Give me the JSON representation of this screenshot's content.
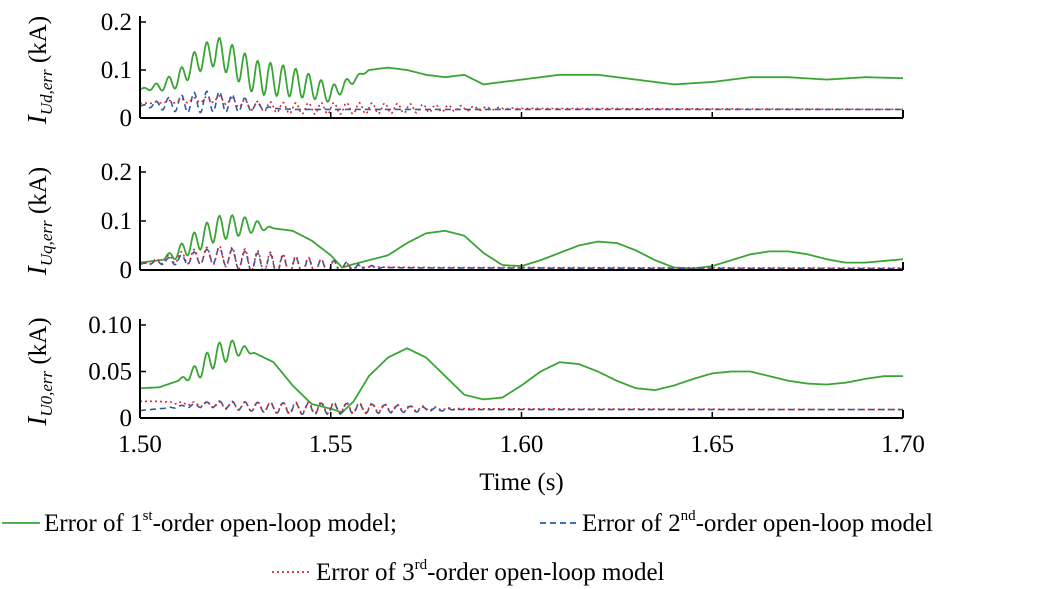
{
  "chart_data": [
    {
      "type": "line",
      "id": "ud",
      "ylabel": {
        "symbol": "I",
        "subscript": "Ud,err",
        "unit": " (kA)"
      },
      "xlim": [
        1.5,
        1.7
      ],
      "ylim": [
        0,
        0.2
      ],
      "yticks": [
        {
          "v": 0,
          "label": "0"
        },
        {
          "v": 0.1,
          "label": "0.1"
        },
        {
          "v": 0.2,
          "label": "0.2"
        }
      ],
      "series": [
        {
          "key": "first",
          "osc": {
            "t0": 1.5,
            "t1": 1.56,
            "amp": 0.035,
            "freq": 300
          },
          "base": [
            [
              1.5,
              0.06
            ],
            [
              1.505,
              0.065
            ],
            [
              1.51,
              0.08
            ],
            [
              1.515,
              0.12
            ],
            [
              1.52,
              0.14
            ],
            [
              1.525,
              0.115
            ],
            [
              1.53,
              0.085
            ],
            [
              1.535,
              0.08
            ],
            [
              1.54,
              0.075
            ],
            [
              1.545,
              0.065
            ],
            [
              1.55,
              0.05
            ],
            [
              1.555,
              0.075
            ],
            [
              1.56,
              0.1
            ],
            [
              1.565,
              0.105
            ],
            [
              1.57,
              0.1
            ],
            [
              1.575,
              0.09
            ],
            [
              1.58,
              0.085
            ],
            [
              1.585,
              0.09
            ],
            [
              1.59,
              0.07
            ],
            [
              1.6,
              0.08
            ],
            [
              1.61,
              0.09
            ],
            [
              1.62,
              0.09
            ],
            [
              1.63,
              0.08
            ],
            [
              1.64,
              0.07
            ],
            [
              1.65,
              0.075
            ],
            [
              1.66,
              0.085
            ],
            [
              1.67,
              0.085
            ],
            [
              1.68,
              0.08
            ],
            [
              1.69,
              0.085
            ],
            [
              1.7,
              0.083
            ]
          ]
        },
        {
          "key": "second",
          "osc": {
            "t0": 1.5,
            "t1": 1.535,
            "amp": 0.022,
            "freq": 300
          },
          "base": [
            [
              1.5,
              0.025
            ],
            [
              1.51,
              0.03
            ],
            [
              1.52,
              0.035
            ],
            [
              1.53,
              0.025
            ],
            [
              1.535,
              0.02
            ],
            [
              1.54,
              0.018
            ],
            [
              1.7,
              0.018
            ]
          ]
        },
        {
          "key": "third",
          "osc": {
            "t0": 1.5,
            "t1": 1.6,
            "amp": 0.012,
            "freq": 300
          },
          "base": [
            [
              1.5,
              0.03
            ],
            [
              1.51,
              0.035
            ],
            [
              1.52,
              0.04
            ],
            [
              1.53,
              0.025
            ],
            [
              1.54,
              0.02
            ],
            [
              1.55,
              0.02
            ],
            [
              1.6,
              0.02
            ],
            [
              1.7,
              0.018
            ]
          ]
        }
      ]
    },
    {
      "type": "line",
      "id": "uq",
      "ylabel": {
        "symbol": "I",
        "subscript": "Uq,err",
        "unit": " (kA)"
      },
      "xlim": [
        1.5,
        1.7
      ],
      "ylim": [
        0,
        0.2
      ],
      "yticks": [
        {
          "v": 0,
          "label": "0"
        },
        {
          "v": 0.1,
          "label": "0.1"
        },
        {
          "v": 0.2,
          "label": "0.2"
        }
      ],
      "series": [
        {
          "key": "first",
          "osc": {
            "t0": 1.505,
            "t1": 1.535,
            "amp": 0.025,
            "freq": 300
          },
          "base": [
            [
              1.5,
              0.015
            ],
            [
              1.505,
              0.02
            ],
            [
              1.51,
              0.035
            ],
            [
              1.515,
              0.06
            ],
            [
              1.52,
              0.085
            ],
            [
              1.525,
              0.09
            ],
            [
              1.53,
              0.09
            ],
            [
              1.535,
              0.085
            ],
            [
              1.54,
              0.08
            ],
            [
              1.545,
              0.06
            ],
            [
              1.55,
              0.03
            ],
            [
              1.553,
              0.005
            ],
            [
              1.556,
              0.012
            ],
            [
              1.56,
              0.02
            ],
            [
              1.565,
              0.03
            ],
            [
              1.57,
              0.055
            ],
            [
              1.575,
              0.075
            ],
            [
              1.58,
              0.08
            ],
            [
              1.585,
              0.07
            ],
            [
              1.59,
              0.035
            ],
            [
              1.595,
              0.01
            ],
            [
              1.6,
              0.008
            ],
            [
              1.605,
              0.02
            ],
            [
              1.61,
              0.035
            ],
            [
              1.615,
              0.05
            ],
            [
              1.62,
              0.058
            ],
            [
              1.625,
              0.055
            ],
            [
              1.63,
              0.04
            ],
            [
              1.635,
              0.02
            ],
            [
              1.64,
              0.005
            ],
            [
              1.645,
              0.003
            ],
            [
              1.65,
              0.008
            ],
            [
              1.655,
              0.02
            ],
            [
              1.66,
              0.032
            ],
            [
              1.665,
              0.038
            ],
            [
              1.67,
              0.038
            ],
            [
              1.675,
              0.032
            ],
            [
              1.68,
              0.022
            ],
            [
              1.685,
              0.015
            ],
            [
              1.69,
              0.015
            ],
            [
              1.7,
              0.022
            ]
          ]
        },
        {
          "key": "second",
          "osc": {
            "t0": 1.5,
            "t1": 1.565,
            "amp": 0.02,
            "freq": 300
          },
          "base": [
            [
              1.5,
              0.012
            ],
            [
              1.51,
              0.02
            ],
            [
              1.52,
              0.03
            ],
            [
              1.53,
              0.015
            ],
            [
              1.54,
              0.008
            ],
            [
              1.56,
              0.005
            ],
            [
              1.58,
              0.004
            ],
            [
              1.7,
              0.003
            ]
          ]
        },
        {
          "key": "third",
          "osc": {
            "t0": 1.5,
            "t1": 1.56,
            "amp": 0.022,
            "freq": 300
          },
          "base": [
            [
              1.5,
              0.012
            ],
            [
              1.51,
              0.025
            ],
            [
              1.52,
              0.03
            ],
            [
              1.53,
              0.018
            ],
            [
              1.54,
              0.01
            ],
            [
              1.56,
              0.006
            ],
            [
              1.58,
              0.005
            ],
            [
              1.7,
              0.004
            ]
          ]
        }
      ]
    },
    {
      "type": "line",
      "id": "u0",
      "ylabel": {
        "symbol": "I",
        "subscript": "U0,err",
        "unit": " (kA)"
      },
      "xlim": [
        1.5,
        1.7
      ],
      "ylim": [
        0,
        0.1
      ],
      "yticks": [
        {
          "v": 0,
          "label": "0"
        },
        {
          "v": 0.05,
          "label": "0.05"
        },
        {
          "v": 0.1,
          "label": "0.10"
        }
      ],
      "xlabel": "Time (s)",
      "xticks": [
        {
          "v": 1.5,
          "label": "1.50"
        },
        {
          "v": 1.55,
          "label": "1.55"
        },
        {
          "v": 1.6,
          "label": "1.60"
        },
        {
          "v": 1.65,
          "label": "1.65"
        },
        {
          "v": 1.7,
          "label": "1.70"
        }
      ],
      "series": [
        {
          "key": "first",
          "osc": {
            "t0": 1.51,
            "t1": 1.53,
            "amp": 0.012,
            "freq": 300
          },
          "base": [
            [
              1.5,
              0.032
            ],
            [
              1.505,
              0.033
            ],
            [
              1.51,
              0.04
            ],
            [
              1.515,
              0.05
            ],
            [
              1.52,
              0.068
            ],
            [
              1.525,
              0.075
            ],
            [
              1.53,
              0.07
            ],
            [
              1.535,
              0.06
            ],
            [
              1.54,
              0.035
            ],
            [
              1.545,
              0.015
            ],
            [
              1.55,
              0.01
            ],
            [
              1.553,
              0.006
            ],
            [
              1.556,
              0.018
            ],
            [
              1.56,
              0.045
            ],
            [
              1.565,
              0.065
            ],
            [
              1.57,
              0.075
            ],
            [
              1.575,
              0.065
            ],
            [
              1.58,
              0.045
            ],
            [
              1.585,
              0.025
            ],
            [
              1.59,
              0.02
            ],
            [
              1.595,
              0.022
            ],
            [
              1.6,
              0.035
            ],
            [
              1.605,
              0.05
            ],
            [
              1.61,
              0.06
            ],
            [
              1.615,
              0.058
            ],
            [
              1.62,
              0.05
            ],
            [
              1.625,
              0.04
            ],
            [
              1.63,
              0.032
            ],
            [
              1.635,
              0.03
            ],
            [
              1.64,
              0.035
            ],
            [
              1.645,
              0.042
            ],
            [
              1.65,
              0.048
            ],
            [
              1.655,
              0.05
            ],
            [
              1.66,
              0.05
            ],
            [
              1.665,
              0.045
            ],
            [
              1.67,
              0.04
            ],
            [
              1.675,
              0.037
            ],
            [
              1.68,
              0.036
            ],
            [
              1.685,
              0.038
            ],
            [
              1.69,
              0.042
            ],
            [
              1.695,
              0.045
            ],
            [
              1.7,
              0.045
            ]
          ]
        },
        {
          "key": "second",
          "osc": {
            "t0": 1.505,
            "t1": 1.585,
            "amp": 0.006,
            "freq": 300
          },
          "base": [
            [
              1.5,
              0.008
            ],
            [
              1.51,
              0.012
            ],
            [
              1.52,
              0.015
            ],
            [
              1.53,
              0.012
            ],
            [
              1.54,
              0.01
            ],
            [
              1.56,
              0.01
            ],
            [
              1.58,
              0.009
            ],
            [
              1.7,
              0.009
            ]
          ]
        },
        {
          "key": "third",
          "osc": {
            "t0": 1.505,
            "t1": 1.585,
            "amp": 0.006,
            "freq": 300
          },
          "base": [
            [
              1.5,
              0.018
            ],
            [
              1.505,
              0.018
            ],
            [
              1.51,
              0.016
            ],
            [
              1.52,
              0.014
            ],
            [
              1.53,
              0.012
            ],
            [
              1.54,
              0.011
            ],
            [
              1.56,
              0.011
            ],
            [
              1.58,
              0.01
            ],
            [
              1.7,
              0.009
            ]
          ]
        }
      ]
    }
  ],
  "styles": {
    "first": {
      "color": "#3aa535",
      "dash": ""
    },
    "second": {
      "color": "#2a5caa",
      "dash": "6,4"
    },
    "third": {
      "color": "#d62a2a",
      "dash": "2,3"
    }
  },
  "legend": {
    "first": {
      "pre": "Error of 1",
      "sup": "st",
      "post": "-order open-loop model;"
    },
    "second": {
      "pre": "Error of 2",
      "sup": "nd",
      "post": "-order open-loop model"
    },
    "third": {
      "pre": "Error of 3",
      "sup": "rd",
      "post": "-order open-loop model"
    }
  }
}
